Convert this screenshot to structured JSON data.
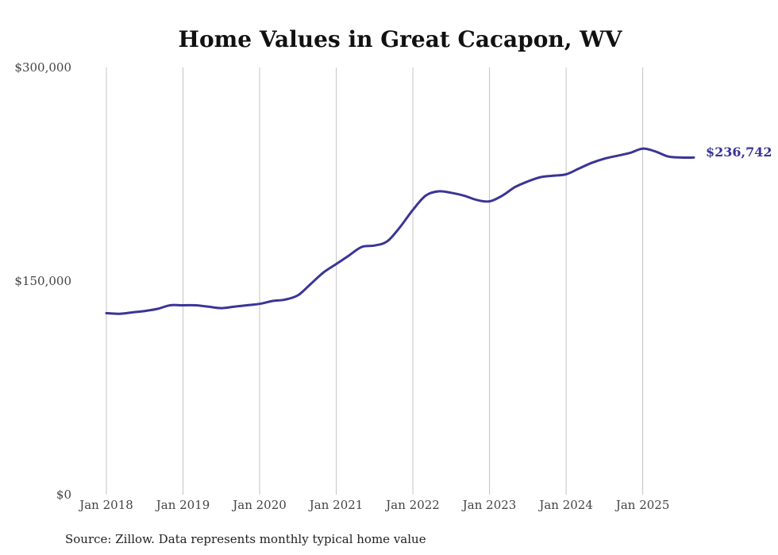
{
  "chart_data": {
    "type": "line",
    "title": "Home Values in Great Cacapon, WV",
    "source": "Source: Zillow. Data represents monthly typical home value",
    "xlabel": "",
    "ylabel": "",
    "ylim": [
      0,
      300000
    ],
    "y_ticks": [
      {
        "value": 0,
        "label": "$0"
      },
      {
        "value": 150000,
        "label": "$150,000"
      },
      {
        "value": 300000,
        "label": "$300,000"
      }
    ],
    "x_ticks": [
      {
        "value": 2018,
        "label": "Jan 2018"
      },
      {
        "value": 2019,
        "label": "Jan 2019"
      },
      {
        "value": 2020,
        "label": "Jan 2020"
      },
      {
        "value": 2021,
        "label": "Jan 2021"
      },
      {
        "value": 2022,
        "label": "Jan 2022"
      },
      {
        "value": 2023,
        "label": "Jan 2023"
      },
      {
        "value": 2024,
        "label": "Jan 2024"
      },
      {
        "value": 2025,
        "label": "Jan 2025"
      }
    ],
    "xlim": [
      2018,
      2025.667
    ],
    "grid": "vertical",
    "line_color": "#3a3596",
    "series": [
      {
        "name": "Typical home value",
        "x": [
          2018.0,
          2018.167,
          2018.333,
          2018.5,
          2018.667,
          2018.833,
          2019.0,
          2019.167,
          2019.333,
          2019.5,
          2019.667,
          2019.833,
          2020.0,
          2020.167,
          2020.333,
          2020.5,
          2020.667,
          2020.833,
          2021.0,
          2021.167,
          2021.333,
          2021.5,
          2021.667,
          2021.833,
          2022.0,
          2022.167,
          2022.333,
          2022.5,
          2022.667,
          2022.833,
          2023.0,
          2023.167,
          2023.333,
          2023.5,
          2023.667,
          2023.833,
          2024.0,
          2024.167,
          2024.333,
          2024.5,
          2024.667,
          2024.833,
          2025.0,
          2025.167,
          2025.333,
          2025.5,
          2025.667
        ],
        "values": [
          127500,
          127000,
          128000,
          129000,
          130500,
          133000,
          133000,
          133000,
          132000,
          131000,
          132000,
          133000,
          134000,
          136000,
          137000,
          140000,
          148000,
          156000,
          162000,
          168000,
          174000,
          175000,
          178000,
          188000,
          200000,
          210000,
          213000,
          212000,
          210000,
          207000,
          206000,
          210000,
          216000,
          220000,
          223000,
          224000,
          225000,
          229000,
          233000,
          236000,
          238000,
          240000,
          243000,
          241000,
          237500,
          236742,
          236742
        ]
      }
    ],
    "end_label": "$236,742"
  }
}
